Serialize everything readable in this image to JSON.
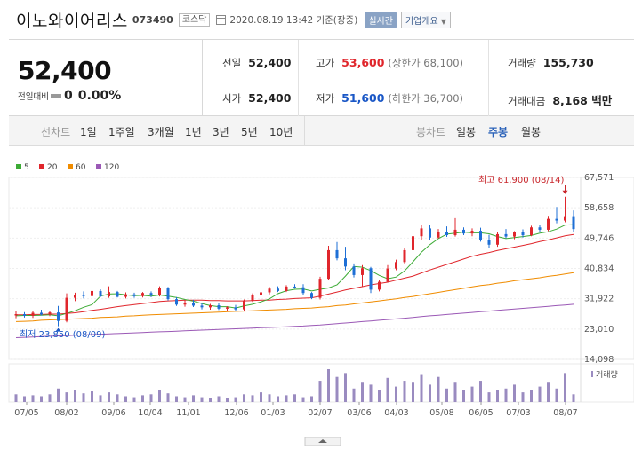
{
  "header": {
    "title": "이노와이어리스",
    "code": "073490",
    "market": "코스닥",
    "datetime": "2020.08.19 13:42 기준(장중)",
    "realtime_button": "실시간",
    "overview_button": "기업개요",
    "icons": {
      "calendar": "calendar-icon",
      "dropdown": "chevron-down-icon"
    }
  },
  "summary": {
    "price": "52,400",
    "change_label": "전일대비",
    "change_value": "0",
    "change_pct": "0.00%",
    "stats": {
      "prev_label": "전일",
      "prev_value": "52,400",
      "high_label": "고가",
      "high_value": "53,600",
      "upper_limit": "(상한가 68,100)",
      "volume_label": "거래량",
      "volume_value": "155,730",
      "open_label": "시가",
      "open_value": "52,400",
      "low_label": "저가",
      "low_value": "51,600",
      "lower_limit": "(하한가 36,700)",
      "amount_label": "거래대금",
      "amount_value": "8,168 백만"
    }
  },
  "toolbar": {
    "line_chart_label": "선차트",
    "line_periods": [
      "1일",
      "1주일",
      "3개월",
      "1년",
      "3년",
      "5년",
      "10년"
    ],
    "candle_chart_label": "봉차트",
    "candle_periods": [
      "일봉",
      "주봉",
      "월봉"
    ],
    "selected_candle": "주봉"
  },
  "colors": {
    "up": "#e0262c",
    "down": "#1e6fd6",
    "ma5": "#3cab35",
    "ma20": "#e0262c",
    "ma60": "#f08c00",
    "ma120": "#9b59b6",
    "volume": "#9a8bc0"
  },
  "chart_data": {
    "type": "candlestick",
    "legend": [
      "5",
      "20",
      "60",
      "120"
    ],
    "y_ticks": [
      "67,571",
      "58,658",
      "49,746",
      "40,834",
      "31,922",
      "23,010",
      "14,098"
    ],
    "ylim": [
      14098,
      67571
    ],
    "x_ticks": [
      "07/05",
      "08/02",
      "09/06",
      "10/04",
      "11/01",
      "12/06",
      "01/03",
      "02/07",
      "03/06",
      "04/03",
      "05/08",
      "06/05",
      "07/03",
      "08/07"
    ],
    "annotation_high": "최고 61,900 (08/14)",
    "annotation_low": "최저 23,850 (08/09)",
    "volume_label": "거래량",
    "candles": [
      {
        "o": 27000,
        "h": 28200,
        "l": 26200,
        "c": 27400
      },
      {
        "o": 27400,
        "h": 28000,
        "l": 26400,
        "c": 26900
      },
      {
        "o": 26900,
        "h": 28300,
        "l": 26300,
        "c": 27800
      },
      {
        "o": 27800,
        "h": 28700,
        "l": 27000,
        "c": 27300
      },
      {
        "o": 27300,
        "h": 28200,
        "l": 26800,
        "c": 27900
      },
      {
        "o": 27900,
        "h": 29800,
        "l": 23850,
        "c": 25400
      },
      {
        "o": 25400,
        "h": 33500,
        "l": 25000,
        "c": 32200
      },
      {
        "o": 32200,
        "h": 33700,
        "l": 31200,
        "c": 33100
      },
      {
        "o": 33100,
        "h": 34100,
        "l": 32000,
        "c": 32700
      },
      {
        "o": 32700,
        "h": 34400,
        "l": 32100,
        "c": 34200
      },
      {
        "o": 34200,
        "h": 34700,
        "l": 32400,
        "c": 32600
      },
      {
        "o": 32600,
        "h": 35600,
        "l": 32200,
        "c": 33900
      },
      {
        "o": 33900,
        "h": 34200,
        "l": 32300,
        "c": 32500
      },
      {
        "o": 32500,
        "h": 33800,
        "l": 32000,
        "c": 33200
      },
      {
        "o": 33200,
        "h": 33700,
        "l": 32200,
        "c": 32700
      },
      {
        "o": 32700,
        "h": 33900,
        "l": 32300,
        "c": 33600
      },
      {
        "o": 33600,
        "h": 34100,
        "l": 32400,
        "c": 32900
      },
      {
        "o": 32900,
        "h": 35600,
        "l": 32600,
        "c": 35100
      },
      {
        "o": 35100,
        "h": 35400,
        "l": 31400,
        "c": 31800
      },
      {
        "o": 31800,
        "h": 32400,
        "l": 29800,
        "c": 30200
      },
      {
        "o": 30200,
        "h": 31500,
        "l": 29600,
        "c": 30800
      },
      {
        "o": 30800,
        "h": 31600,
        "l": 29500,
        "c": 29900
      },
      {
        "o": 29900,
        "h": 30700,
        "l": 28800,
        "c": 29400
      },
      {
        "o": 29400,
        "h": 30400,
        "l": 28700,
        "c": 30000
      },
      {
        "o": 30000,
        "h": 30800,
        "l": 28600,
        "c": 29000
      },
      {
        "o": 29000,
        "h": 29700,
        "l": 28200,
        "c": 29400
      },
      {
        "o": 29400,
        "h": 30100,
        "l": 28400,
        "c": 28800
      },
      {
        "o": 28800,
        "h": 31700,
        "l": 28400,
        "c": 31400
      },
      {
        "o": 31400,
        "h": 33500,
        "l": 31000,
        "c": 33100
      },
      {
        "o": 33100,
        "h": 34300,
        "l": 32600,
        "c": 33800
      },
      {
        "o": 33800,
        "h": 35400,
        "l": 33200,
        "c": 34900
      },
      {
        "o": 34900,
        "h": 35600,
        "l": 33900,
        "c": 34200
      },
      {
        "o": 34200,
        "h": 35900,
        "l": 33900,
        "c": 35500
      },
      {
        "o": 35500,
        "h": 36200,
        "l": 34900,
        "c": 35300
      },
      {
        "o": 35300,
        "h": 36200,
        "l": 33000,
        "c": 33600
      },
      {
        "o": 33600,
        "h": 33900,
        "l": 31800,
        "c": 32200
      },
      {
        "o": 32200,
        "h": 38400,
        "l": 31700,
        "c": 37800
      },
      {
        "o": 37800,
        "h": 47500,
        "l": 37400,
        "c": 46200
      },
      {
        "o": 46200,
        "h": 48600,
        "l": 43200,
        "c": 43800
      },
      {
        "o": 43800,
        "h": 47200,
        "l": 40300,
        "c": 41400
      },
      {
        "o": 41400,
        "h": 42300,
        "l": 38200,
        "c": 38900
      },
      {
        "o": 38900,
        "h": 41800,
        "l": 35600,
        "c": 40900
      },
      {
        "o": 40900,
        "h": 41300,
        "l": 33600,
        "c": 34600
      },
      {
        "o": 34600,
        "h": 37400,
        "l": 34100,
        "c": 36900
      },
      {
        "o": 36900,
        "h": 41800,
        "l": 36700,
        "c": 40800
      },
      {
        "o": 40800,
        "h": 43400,
        "l": 40300,
        "c": 42700
      },
      {
        "o": 42700,
        "h": 46800,
        "l": 42300,
        "c": 46200
      },
      {
        "o": 46200,
        "h": 50800,
        "l": 45700,
        "c": 50300
      },
      {
        "o": 50300,
        "h": 53600,
        "l": 49200,
        "c": 52600
      },
      {
        "o": 52600,
        "h": 53700,
        "l": 49300,
        "c": 49900
      },
      {
        "o": 49900,
        "h": 52400,
        "l": 49600,
        "c": 51600
      },
      {
        "o": 51600,
        "h": 53200,
        "l": 50100,
        "c": 50600
      },
      {
        "o": 50600,
        "h": 55600,
        "l": 50200,
        "c": 52200
      },
      {
        "o": 52200,
        "h": 52900,
        "l": 50600,
        "c": 51100
      },
      {
        "o": 51100,
        "h": 52600,
        "l": 50300,
        "c": 51900
      },
      {
        "o": 51900,
        "h": 52800,
        "l": 48700,
        "c": 49300
      },
      {
        "o": 49300,
        "h": 50700,
        "l": 46800,
        "c": 47800
      },
      {
        "o": 47800,
        "h": 51400,
        "l": 47200,
        "c": 50900
      },
      {
        "o": 50900,
        "h": 52400,
        "l": 49700,
        "c": 50200
      },
      {
        "o": 50200,
        "h": 51800,
        "l": 49400,
        "c": 51600
      },
      {
        "o": 51600,
        "h": 52300,
        "l": 49900,
        "c": 50600
      },
      {
        "o": 50600,
        "h": 53400,
        "l": 50300,
        "c": 52900
      },
      {
        "o": 52900,
        "h": 53600,
        "l": 51600,
        "c": 52200
      },
      {
        "o": 52200,
        "h": 56300,
        "l": 51800,
        "c": 55400
      },
      {
        "o": 55400,
        "h": 58900,
        "l": 54100,
        "c": 54900
      },
      {
        "o": 54900,
        "h": 61900,
        "l": 54400,
        "c": 56200
      },
      {
        "o": 56200,
        "h": 57900,
        "l": 51600,
        "c": 52400
      }
    ],
    "volumes": [
      8,
      6,
      7,
      6,
      8,
      14,
      10,
      12,
      9,
      11,
      7,
      10,
      8,
      6,
      5,
      7,
      8,
      12,
      9,
      6,
      5,
      7,
      5,
      4,
      6,
      4,
      5,
      8,
      7,
      10,
      8,
      6,
      7,
      8,
      5,
      6,
      22,
      34,
      26,
      30,
      14,
      20,
      18,
      12,
      25,
      16,
      22,
      20,
      28,
      18,
      26,
      14,
      20,
      12,
      16,
      22,
      10,
      12,
      14,
      18,
      10,
      12,
      16,
      20,
      14,
      30,
      8
    ],
    "ma5": [
      26900,
      27000,
      27000,
      27100,
      27200,
      26900,
      27600,
      28400,
      29400,
      30200,
      32700,
      33300,
      33400,
      33100,
      32800,
      32900,
      32700,
      33000,
      32700,
      32300,
      31700,
      31200,
      30500,
      29900,
      29600,
      29600,
      29200,
      29800,
      30300,
      31000,
      31900,
      33400,
      34300,
      34700,
      34800,
      34200,
      34700,
      35100,
      36000,
      38600,
      41400,
      41200,
      40200,
      38800,
      37800,
      38300,
      40100,
      42800,
      45600,
      47800,
      49600,
      50900,
      51200,
      51500,
      51300,
      51300,
      51000,
      50200,
      49600,
      49900,
      50200,
      50500,
      51200,
      51600,
      52400,
      53600,
      53700
    ],
    "ma20": [
      27200,
      27200,
      27300,
      27300,
      27400,
      27400,
      27600,
      27800,
      28100,
      28500,
      28800,
      29200,
      29600,
      29900,
      30200,
      30500,
      30800,
      31100,
      31300,
      31400,
      31500,
      31500,
      31500,
      31400,
      31400,
      31300,
      31300,
      31300,
      31400,
      31500,
      31500,
      31700,
      31800,
      32000,
      32100,
      32200,
      32700,
      33300,
      33900,
      34500,
      35000,
      35500,
      36000,
      36400,
      36800,
      37400,
      38000,
      38600,
      39500,
      40400,
      41200,
      42000,
      42800,
      43600,
      44400,
      45000,
      45500,
      46100,
      46600,
      47100,
      47600,
      48100,
      48700,
      49200,
      49800,
      50400,
      50800
    ],
    "ma60": [
      25200,
      25300,
      25400,
      25600,
      25700,
      25800,
      25900,
      26000,
      26100,
      26200,
      26400,
      26500,
      26600,
      26800,
      26900,
      27100,
      27200,
      27300,
      27400,
      27500,
      27600,
      27700,
      27800,
      27900,
      28000,
      28100,
      28200,
      28300,
      28400,
      28500,
      28600,
      28700,
      28800,
      29000,
      29100,
      29200,
      29400,
      29600,
      29900,
      30100,
      30400,
      30700,
      31000,
      31300,
      31600,
      31900,
      32300,
      32600,
      33000,
      33400,
      33800,
      34200,
      34600,
      35000,
      35400,
      35800,
      36100,
      36500,
      36800,
      37200,
      37500,
      37800,
      38100,
      38500,
      38800,
      39200,
      39600
    ],
    "ma120": [
      20500,
      20600,
      20700,
      20800,
      20900,
      21000,
      21100,
      21200,
      21300,
      21400,
      21500,
      21600,
      21700,
      21800,
      21900,
      22000,
      22100,
      22200,
      22300,
      22400,
      22500,
      22600,
      22700,
      22800,
      22900,
      23000,
      23100,
      23200,
      23300,
      23400,
      23500,
      23600,
      23700,
      23800,
      23900,
      24100,
      24200,
      24400,
      24600,
      24800,
      25000,
      25200,
      25400,
      25600,
      25800,
      26000,
      26200,
      26400,
      26700,
      26900,
      27100,
      27300,
      27500,
      27700,
      27900,
      28100,
      28300,
      28500,
      28700,
      28900,
      29100,
      29300,
      29500,
      29700,
      29900,
      30100,
      30300
    ]
  }
}
